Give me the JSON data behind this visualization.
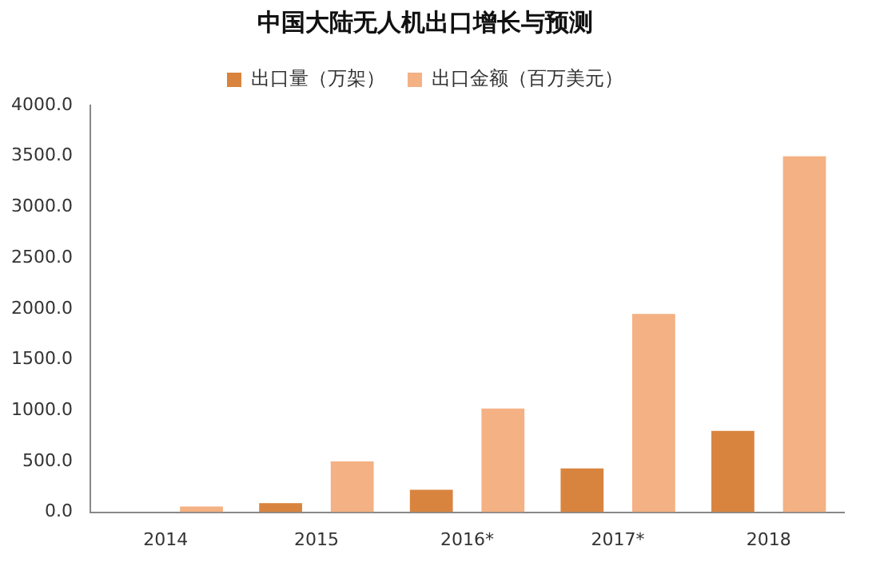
{
  "chart_data": {
    "type": "bar",
    "title": "中国大陆无人机出口增长与预测",
    "categories": [
      "2014",
      "2015",
      "2016*",
      "2017*",
      "2018"
    ],
    "series": [
      {
        "name": "出口量（万架）",
        "color": "#d9843e",
        "values": [
          0,
          90,
          220,
          430,
          800
        ]
      },
      {
        "name": "出口金额（百万美元）",
        "color": "#f4b183",
        "values": [
          55,
          500,
          1020,
          1950,
          3500
        ]
      }
    ],
    "ylim": [
      0,
      4000
    ],
    "yticks": [
      {
        "value": 0,
        "label": "0.0"
      },
      {
        "value": 500,
        "label": "500.0"
      },
      {
        "value": 1000,
        "label": "1000.0"
      },
      {
        "value": 1500,
        "label": "1500.0"
      },
      {
        "value": 2000,
        "label": "2000.0"
      },
      {
        "value": 2500,
        "label": "2500.0"
      },
      {
        "value": 3000,
        "label": "3000.0"
      },
      {
        "value": 3500,
        "label": "3500.0"
      },
      {
        "value": 4000,
        "label": "4000.0"
      }
    ],
    "grid": false,
    "legend": "top"
  }
}
